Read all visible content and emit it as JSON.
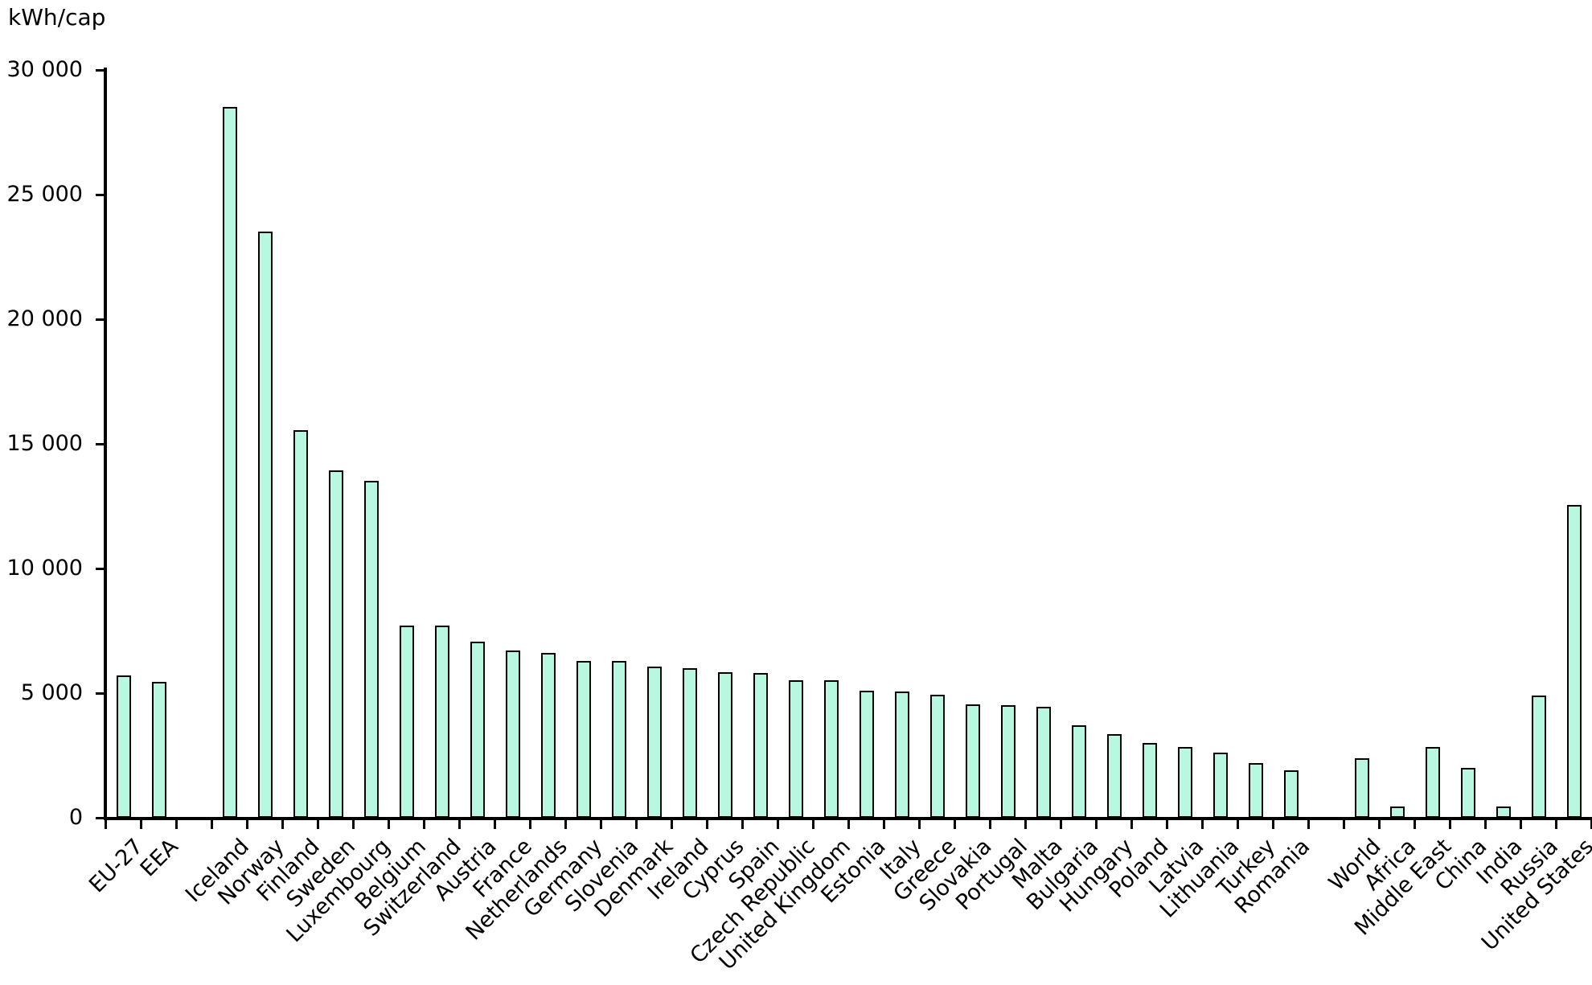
{
  "chart_data": {
    "type": "bar",
    "title": "",
    "unit_label": "kWh/cap",
    "xlabel": "",
    "ylabel": "kWh/cap",
    "y_axis": {
      "min": 0,
      "max": 30000,
      "tick_interval": 5000,
      "tick_labels": [
        "0",
        "5 000",
        "10 000",
        "15 000",
        "20 000",
        "25 000",
        "30 000"
      ]
    },
    "grid": false,
    "legend_position": "none",
    "bar_fill_color": "#B8F7E0",
    "bar_border_color": "#000000",
    "groups": [
      {
        "name": "eu-aggregates",
        "points": [
          {
            "label": "EU-27",
            "value": 5700
          },
          {
            "label": "EEA",
            "value": 5450
          }
        ]
      },
      {
        "name": "european-countries",
        "points": [
          {
            "label": "Iceland",
            "value": 28500
          },
          {
            "label": "Norway",
            "value": 23500
          },
          {
            "label": "Finland",
            "value": 15550
          },
          {
            "label": "Sweden",
            "value": 13950
          },
          {
            "label": "Luxembourg",
            "value": 13500
          },
          {
            "label": "Belgium",
            "value": 7700
          },
          {
            "label": "Switzerland",
            "value": 7700
          },
          {
            "label": "Austria",
            "value": 7050
          },
          {
            "label": "France",
            "value": 6700
          },
          {
            "label": "Netherlands",
            "value": 6600
          },
          {
            "label": "Germany",
            "value": 6300
          },
          {
            "label": "Slovenia",
            "value": 6300
          },
          {
            "label": "Denmark",
            "value": 6050
          },
          {
            "label": "Ireland",
            "value": 6000
          },
          {
            "label": "Cyprus",
            "value": 5850
          },
          {
            "label": "Spain",
            "value": 5800
          },
          {
            "label": "Czech Republic",
            "value": 5500
          },
          {
            "label": "United Kingdom",
            "value": 5500
          },
          {
            "label": "Estonia",
            "value": 5100
          },
          {
            "label": "Italy",
            "value": 5050
          },
          {
            "label": "Greece",
            "value": 4950
          },
          {
            "label": "Slovakia",
            "value": 4550
          },
          {
            "label": "Portugal",
            "value": 4500
          },
          {
            "label": "Malta",
            "value": 4450
          },
          {
            "label": "Bulgaria",
            "value": 3700
          },
          {
            "label": "Hungary",
            "value": 3350
          },
          {
            "label": "Poland",
            "value": 3000
          },
          {
            "label": "Latvia",
            "value": 2850
          },
          {
            "label": "Lithuania",
            "value": 2600
          },
          {
            "label": "Turkey",
            "value": 2200
          },
          {
            "label": "Romania",
            "value": 1900
          }
        ]
      },
      {
        "name": "world-regions",
        "points": [
          {
            "label": "World",
            "value": 2400
          },
          {
            "label": "Africa",
            "value": 450
          },
          {
            "label": "Middle East",
            "value": 2850
          },
          {
            "label": "China",
            "value": 2000
          },
          {
            "label": "India",
            "value": 450
          },
          {
            "label": "Russia",
            "value": 4900
          },
          {
            "label": "United States",
            "value": 12550
          }
        ]
      }
    ]
  }
}
